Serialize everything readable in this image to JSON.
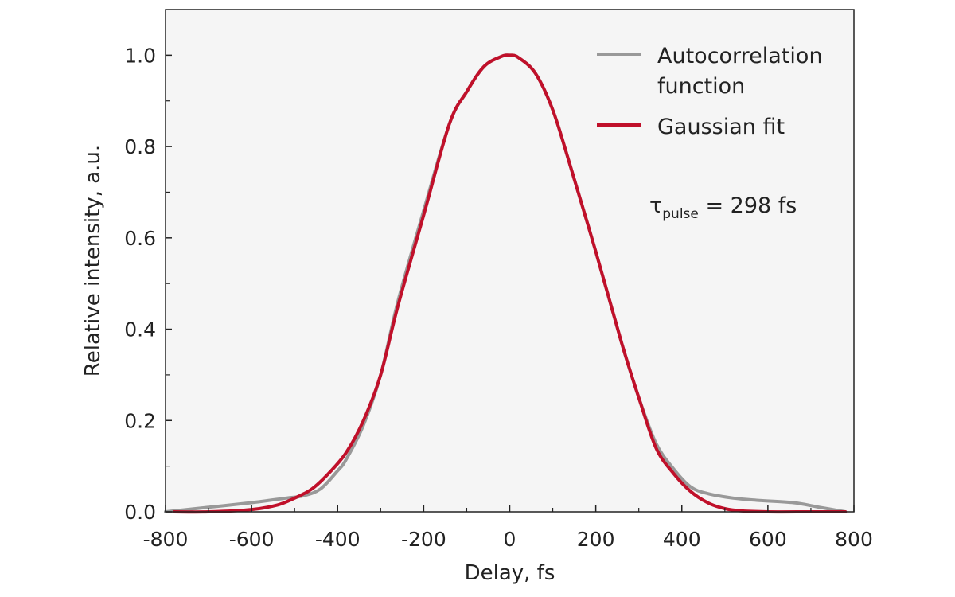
{
  "chart_data": {
    "type": "line",
    "title": "",
    "xlabel": "Delay, fs",
    "ylabel": "Relative intensity, a.u.",
    "xlim": [
      -800,
      800
    ],
    "ylim": [
      0,
      1.1
    ],
    "xticks": [
      -800,
      -600,
      -400,
      -200,
      0,
      200,
      400,
      600,
      800
    ],
    "xtick_labels": [
      "-800",
      "-600",
      "-400",
      "-200",
      "0",
      "200",
      "400",
      "600",
      "800"
    ],
    "yticks": [
      0,
      0.2,
      0.4,
      0.6,
      0.8,
      1.0
    ],
    "ytick_labels": [
      "0.0",
      "0.2",
      "0.4",
      "0.6",
      "0.8",
      "1.0"
    ],
    "grid": false,
    "legend_position": "top-right",
    "background_color": "#f5f5f5",
    "series": [
      {
        "name_lines": [
          "Autocorrelation",
          "function"
        ],
        "color": "#999999",
        "x": [
          -800,
          -700,
          -600,
          -520,
          -480,
          -440,
          -400,
          -380,
          -340,
          -300,
          -260,
          -200,
          -140,
          -100,
          -60,
          -20,
          0,
          20,
          60,
          100,
          140,
          200,
          260,
          300,
          340,
          380,
          420,
          460,
          520,
          580,
          660,
          720,
          780
        ],
        "y": [
          0.0,
          0.01,
          0.02,
          0.03,
          0.035,
          0.05,
          0.09,
          0.115,
          0.19,
          0.3,
          0.46,
          0.66,
          0.85,
          0.92,
          0.975,
          0.997,
          1.0,
          0.995,
          0.96,
          0.88,
          0.76,
          0.57,
          0.37,
          0.25,
          0.15,
          0.095,
          0.055,
          0.04,
          0.03,
          0.025,
          0.02,
          0.01,
          0.0
        ]
      },
      {
        "name": "Gaussian fit",
        "color": "#c0102a",
        "x": [
          -780,
          -700,
          -600,
          -540,
          -500,
          -460,
          -420,
          -380,
          -340,
          -300,
          -260,
          -200,
          -140,
          -100,
          -60,
          -20,
          0,
          20,
          60,
          100,
          140,
          200,
          260,
          300,
          340,
          380,
          420,
          460,
          500,
          540,
          600,
          700,
          780
        ],
        "y": [
          0.0,
          0.0,
          0.005,
          0.015,
          0.03,
          0.05,
          0.085,
          0.13,
          0.2,
          0.3,
          0.45,
          0.65,
          0.85,
          0.92,
          0.975,
          0.997,
          1.0,
          0.995,
          0.96,
          0.88,
          0.76,
          0.57,
          0.37,
          0.25,
          0.14,
          0.085,
          0.045,
          0.02,
          0.007,
          0.002,
          0.0,
          0.0,
          0.0
        ]
      }
    ],
    "annotation": {
      "symbol": "τ",
      "subscript": "pulse",
      "text": " = 298 fs"
    }
  }
}
